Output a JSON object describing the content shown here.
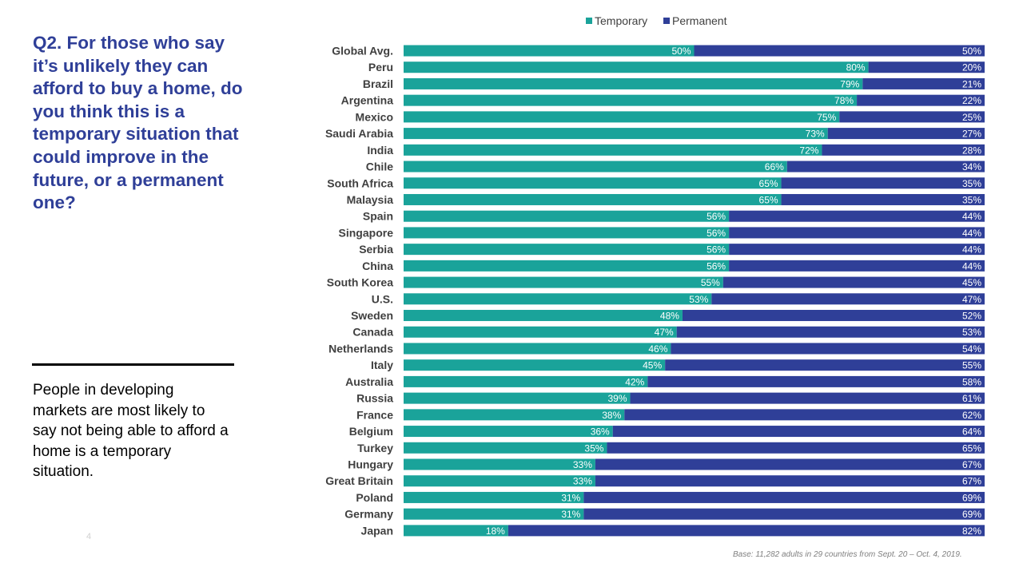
{
  "slide": {
    "question": "Q2. For those who say it’s unlikely they can afford to buy a home, do you think this is a temporary situation that could improve in the future, or a permanent one?",
    "summary": "People in developing markets are most likely to say not being able to afford a home is a temporary situation.",
    "page_number": "4",
    "footnote": "Base: 11,282 adults in 29 countries from Sept. 20 – Oct. 4, 2019."
  },
  "colors": {
    "temporary": "#1aa39a",
    "permanent": "#2f3f98"
  },
  "chart_data": {
    "type": "bar",
    "orientation": "horizontal",
    "stacked": true,
    "percent_stacked": true,
    "title": "",
    "xlabel": "",
    "ylabel": "",
    "xlim": [
      0,
      100
    ],
    "legend_position": "top",
    "categories": [
      "Global Avg.",
      "Peru",
      "Brazil",
      "Argentina",
      "Mexico",
      "Saudi Arabia",
      "India",
      "Chile",
      "South Africa",
      "Malaysia",
      "Spain",
      "Singapore",
      "Serbia",
      "China",
      "South Korea",
      "U.S.",
      "Sweden",
      "Canada",
      "Netherlands",
      "Italy",
      "Australia",
      "Russia",
      "France",
      "Belgium",
      "Turkey",
      "Hungary",
      "Great Britain",
      "Poland",
      "Germany",
      "Japan"
    ],
    "series": [
      {
        "name": "Temporary",
        "values": [
          50,
          80,
          79,
          78,
          75,
          73,
          72,
          66,
          65,
          65,
          56,
          56,
          56,
          56,
          55,
          53,
          48,
          47,
          46,
          45,
          42,
          39,
          38,
          36,
          35,
          33,
          33,
          31,
          31,
          18
        ],
        "labels": [
          "50%",
          "80%",
          "79%",
          "78%",
          "75%",
          "73%",
          "72%",
          "66%",
          "65%",
          "65%",
          "56%",
          "56%",
          "56%",
          "56%",
          "55%",
          "53%",
          "48%",
          "47%",
          "46%",
          "45%",
          "42%",
          "39%",
          "38%",
          "36%",
          "35%",
          "33%",
          "33%",
          "31%",
          "31%",
          "18%"
        ]
      },
      {
        "name": "Permanent",
        "values": [
          50,
          20,
          21,
          22,
          25,
          27,
          28,
          34,
          35,
          35,
          44,
          44,
          44,
          44,
          45,
          47,
          52,
          53,
          54,
          55,
          58,
          61,
          62,
          64,
          65,
          67,
          67,
          69,
          69,
          82
        ],
        "labels": [
          "50%",
          "20%",
          "21%",
          "22%",
          "25%",
          "27%",
          "28%",
          "34%",
          "35%",
          "35%",
          "44%",
          "44%",
          "44%",
          "44%",
          "45%",
          "47%",
          "52%",
          "53%",
          "54%",
          "55%",
          "58%",
          "61%",
          "62%",
          "64%",
          "65%",
          "67%",
          "67%",
          "69%",
          "69%",
          "82%"
        ]
      }
    ]
  }
}
